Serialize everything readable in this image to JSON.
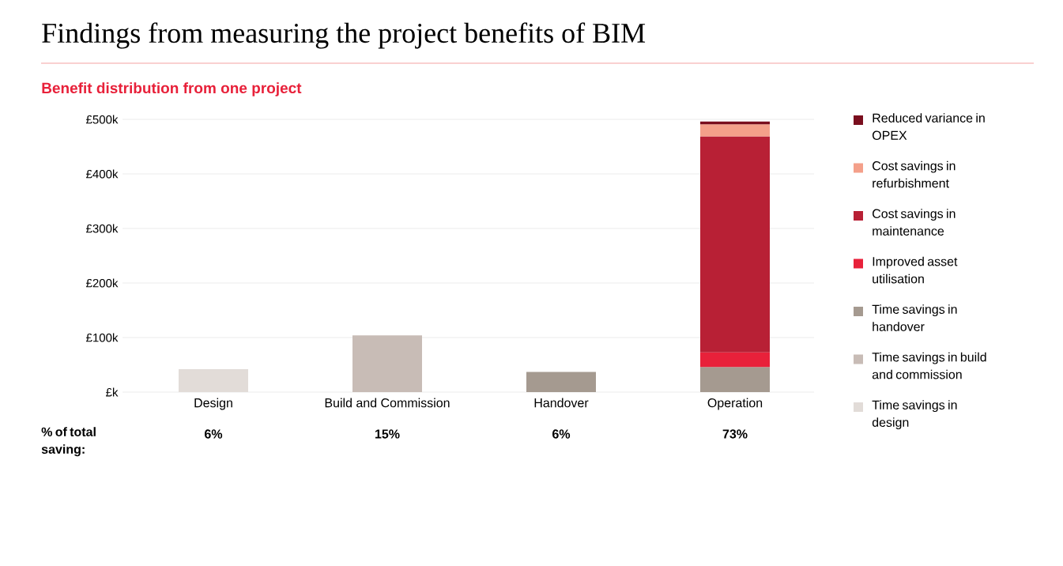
{
  "chart_data": {
    "type": "bar",
    "stacked": true,
    "title": "Findings from measuring the project benefits of BIM",
    "subtitle": "Benefit distribution from one project",
    "categories": [
      "Design",
      "Build and Commission",
      "Handover",
      "Operation"
    ],
    "series": [
      {
        "name": "Time savings in design",
        "color": "#e2dcd8",
        "values": [
          42,
          null,
          null,
          null
        ]
      },
      {
        "name": "Time savings in build and commission",
        "color": "#c8bcb6",
        "values": [
          null,
          104,
          null,
          null
        ]
      },
      {
        "name": "Time savings in handover",
        "color": "#a59a90",
        "values": [
          null,
          null,
          37,
          46
        ]
      },
      {
        "name": "Improved asset utilisation",
        "color": "#e8213a",
        "values": [
          null,
          null,
          null,
          27
        ]
      },
      {
        "name": "Cost savings in maintenance",
        "color": "#b82035",
        "values": [
          null,
          null,
          null,
          396
        ]
      },
      {
        "name": "Cost savings in refurbishment",
        "color": "#f4a08a",
        "values": [
          null,
          null,
          null,
          22
        ]
      },
      {
        "name": "Reduced variance in OPEX",
        "color": "#7a0e1e",
        "values": [
          null,
          null,
          null,
          5
        ]
      }
    ],
    "ylim": [
      0,
      500
    ],
    "yticks": [
      {
        "value": 0,
        "label": "£k"
      },
      {
        "value": 100,
        "label": "£100k"
      },
      {
        "value": 200,
        "label": "£200k"
      },
      {
        "value": 300,
        "label": "£300k"
      },
      {
        "value": 400,
        "label": "£400k"
      },
      {
        "value": 500,
        "label": "£500k"
      }
    ],
    "grid": "y",
    "legend": "right",
    "annotations": [
      "% of total saving:",
      "6%",
      "15%",
      "6%",
      "73%"
    ]
  }
}
